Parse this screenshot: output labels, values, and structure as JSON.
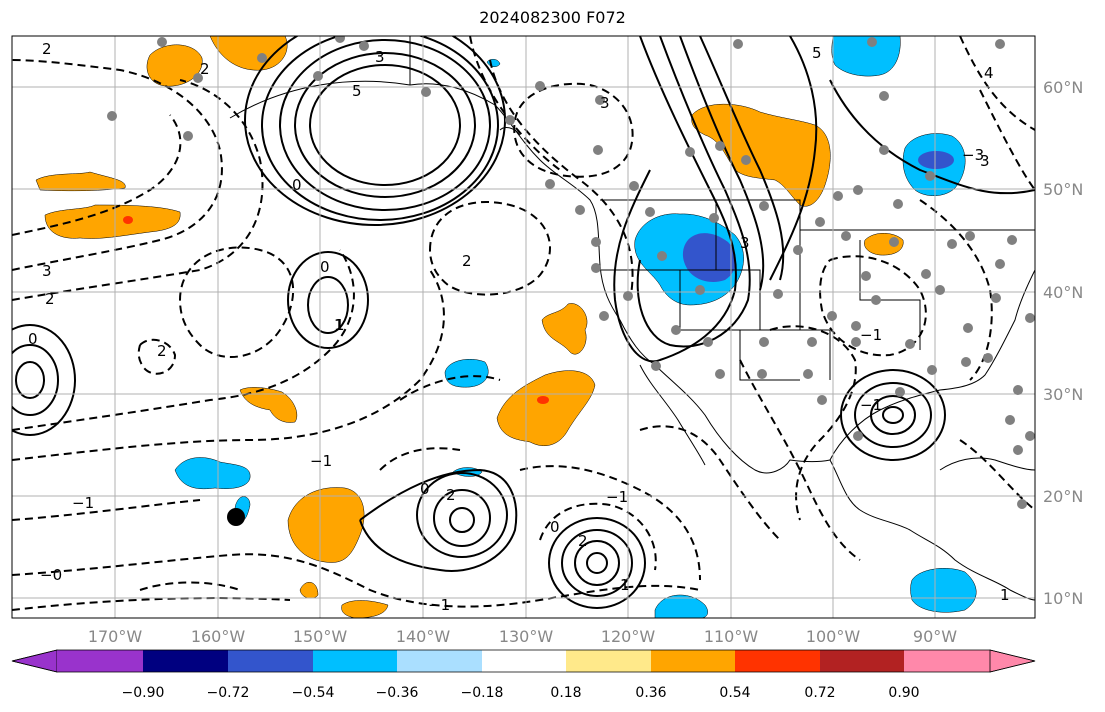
{
  "title": "2024082300 F072",
  "lat_labels": [
    "60°N",
    "50°N",
    "40°N",
    "30°N",
    "20°N",
    "10°N"
  ],
  "lon_labels": [
    "170°W",
    "160°W",
    "150°W",
    "140°W",
    "130°W",
    "120°W",
    "110°W",
    "100°W",
    "90°W"
  ],
  "colorbar": {
    "colors": [
      "#9933cc",
      "#000080",
      "#3355cc",
      "#00bfff",
      "#aadfff",
      "#ffffff",
      "#ffe98a",
      "#ffa500",
      "#ff3300",
      "#b22222",
      "#ff88aa"
    ],
    "labels": [
      "−0.90",
      "−0.72",
      "−0.54",
      "−0.36",
      "−0.18",
      "0.18",
      "0.36",
      "0.54",
      "0.72",
      "0.90"
    ]
  },
  "contour_labels": [
    "2",
    "3",
    "3",
    "5",
    "0",
    "0",
    "3",
    "2",
    "3",
    "0",
    "2",
    "2",
    "1",
    "−1",
    "2",
    "−1",
    "−1",
    "−1",
    "−1",
    "−0",
    "2",
    "2",
    "−1",
    "1",
    "3",
    "5",
    "4",
    "0",
    "0",
    "−3",
    "1",
    "1"
  ],
  "colors": {
    "grid": "#b0b0b0",
    "coast": "#000000",
    "station": "#808080",
    "orange": "#ffa500",
    "cyan": "#00bfff",
    "blue": "#3355cc",
    "red": "#ff3300"
  }
}
